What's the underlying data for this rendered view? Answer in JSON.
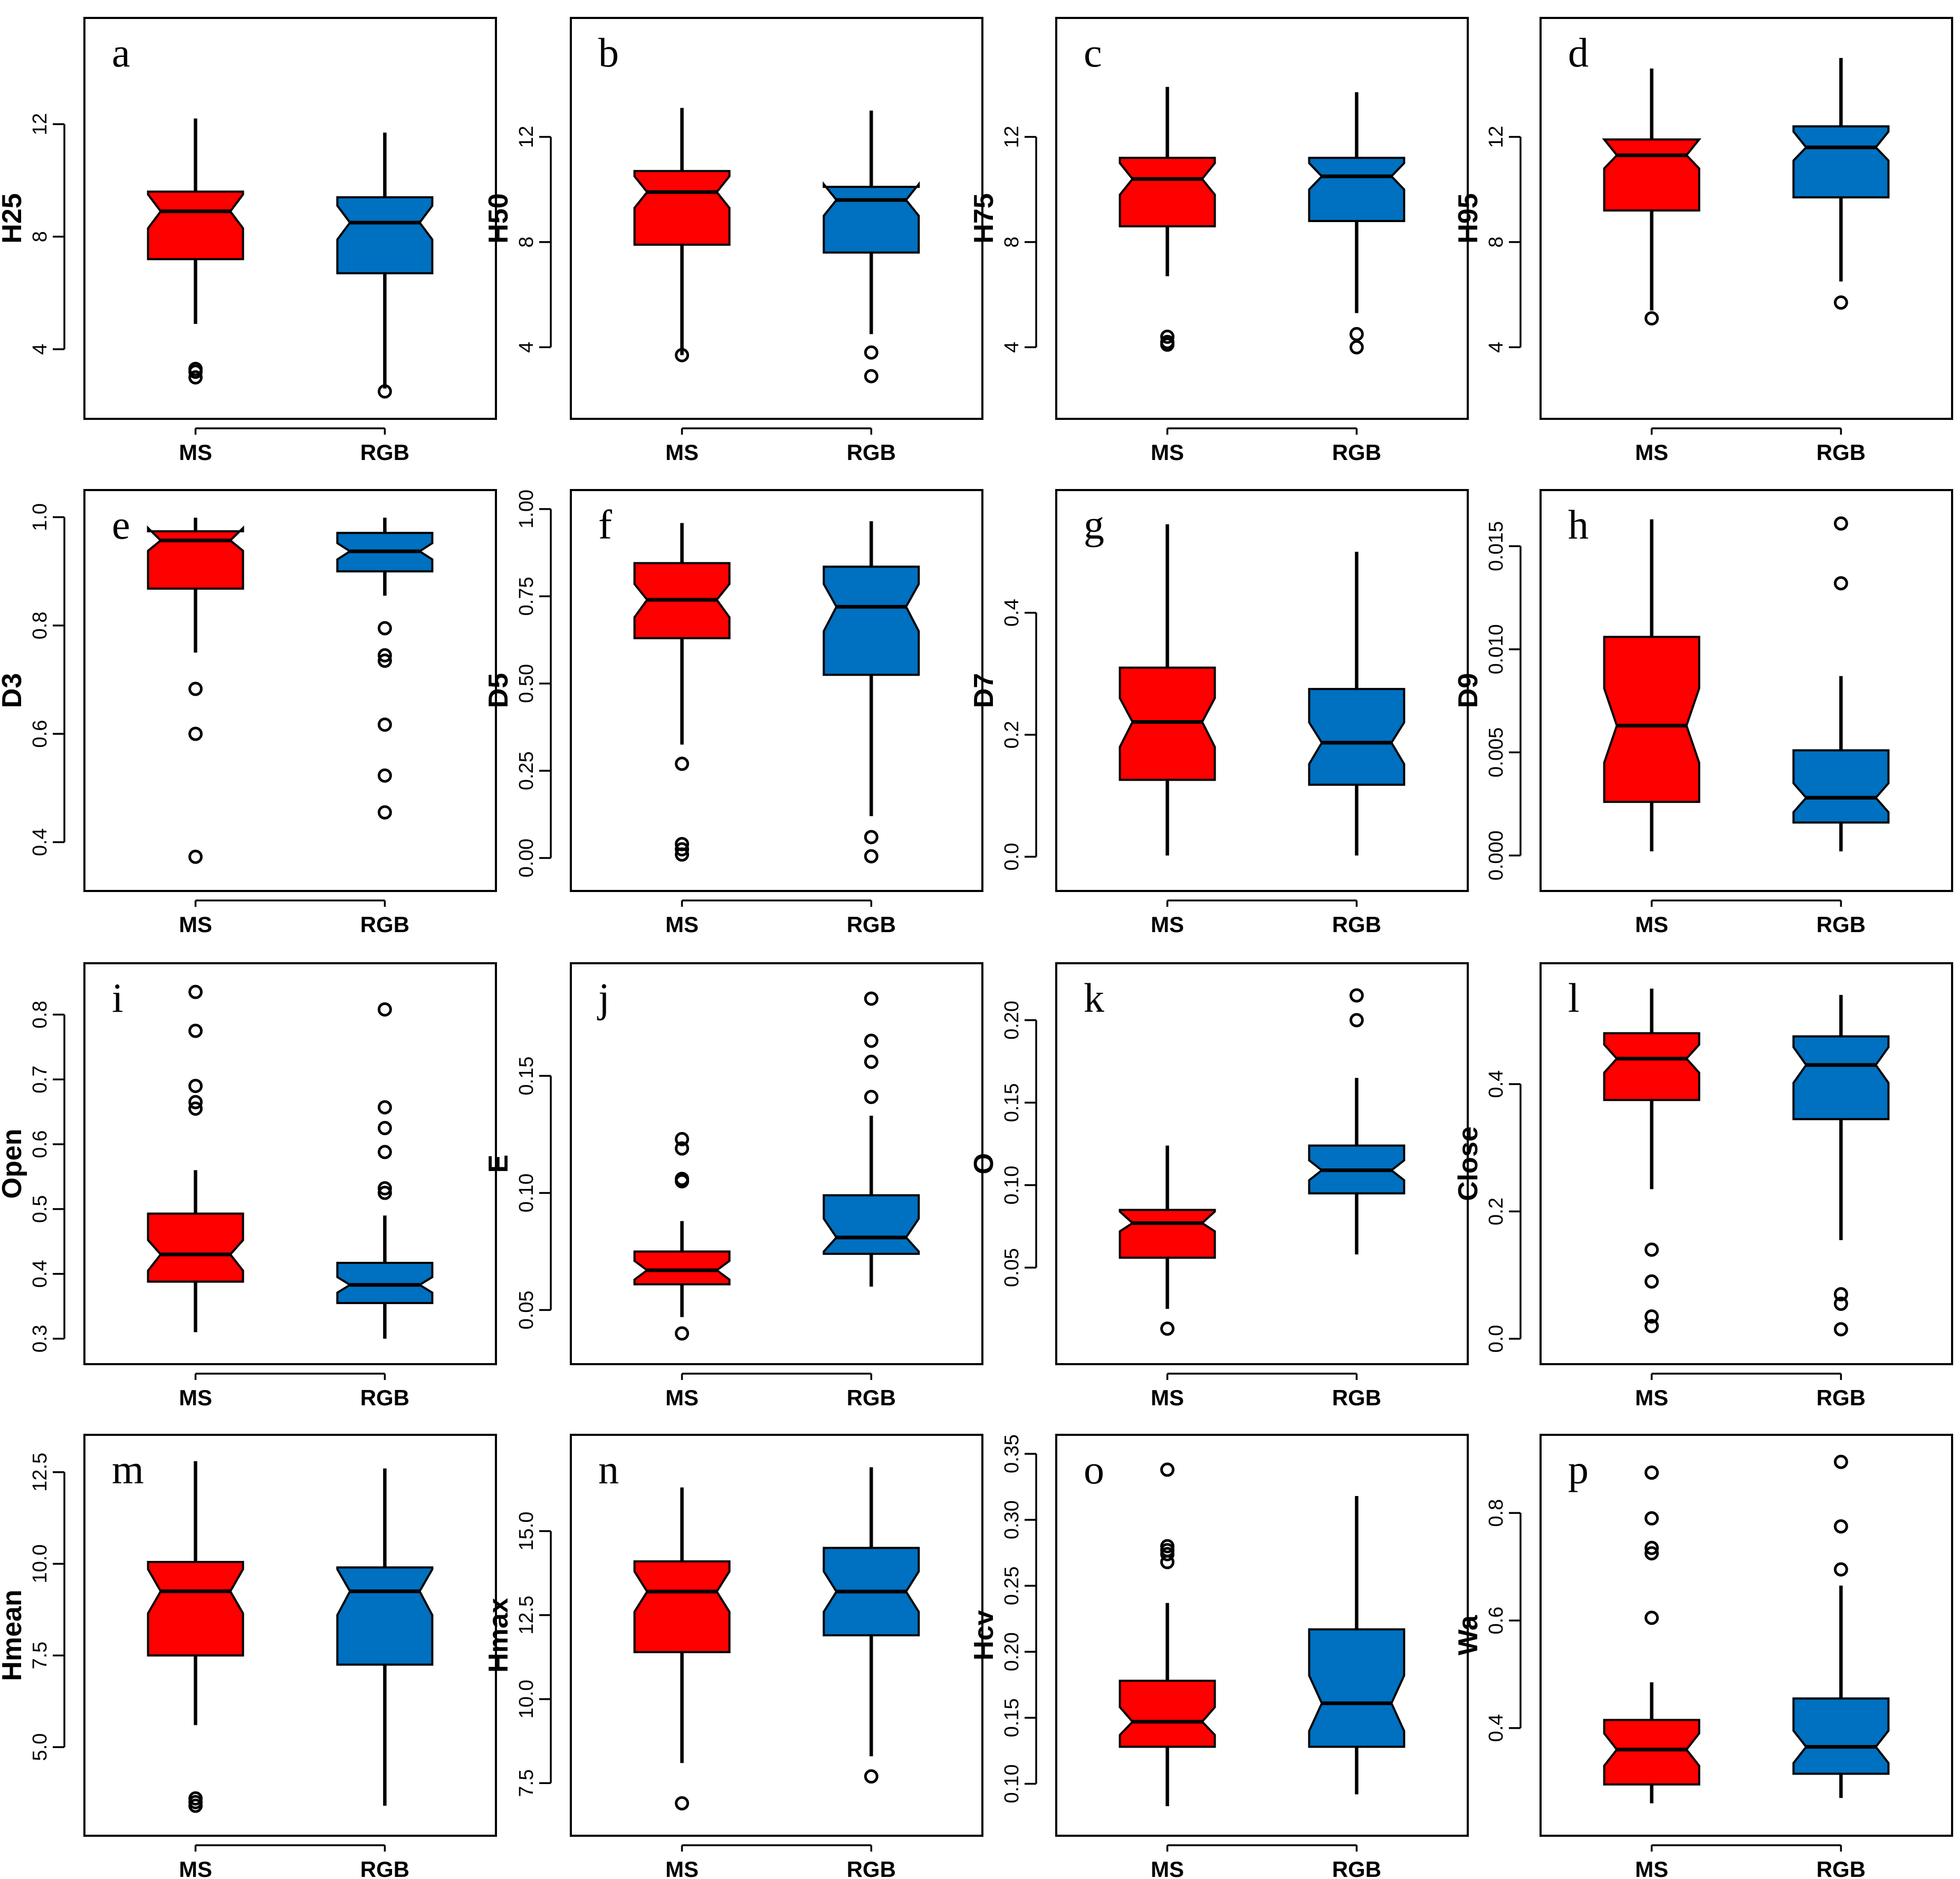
{
  "chart_data": [
    {
      "type": "box",
      "letter": "a",
      "ylabel": "H25",
      "categories": [
        "MS",
        "RGB"
      ],
      "ylim": [
        2.2,
        15.1
      ],
      "yticks": [
        {
          "v": 4,
          "t": "4"
        },
        {
          "v": 8,
          "t": "8"
        },
        {
          "v": 12,
          "t": "12"
        }
      ],
      "boxes": [
        {
          "q1": 7.2,
          "median": 8.9,
          "q3": 9.6,
          "notch": [
            8.3,
            9.5
          ],
          "wlo": 4.9,
          "whi": 12.2,
          "outliers": [
            3.0,
            3.2,
            3.3
          ]
        },
        {
          "q1": 6.7,
          "median": 8.5,
          "q3": 9.4,
          "notch": [
            7.9,
            9.1
          ],
          "wlo": 2.6,
          "whi": 11.7,
          "outliers": [
            2.5
          ]
        }
      ]
    },
    {
      "type": "box",
      "letter": "b",
      "ylabel": "H50",
      "categories": [
        "MS",
        "RGB"
      ],
      "ylim": [
        2.0,
        15.8
      ],
      "yticks": [
        {
          "v": 4,
          "t": "4"
        },
        {
          "v": 8,
          "t": "8"
        },
        {
          "v": 12,
          "t": "12"
        }
      ],
      "boxes": [
        {
          "q1": 7.9,
          "median": 9.9,
          "q3": 10.7,
          "notch": [
            9.3,
            10.5
          ],
          "wlo": 3.7,
          "whi": 13.1,
          "outliers": [
            3.7
          ]
        },
        {
          "q1": 7.6,
          "median": 9.6,
          "q3": 10.1,
          "notch": [
            9.0,
            10.2
          ],
          "wlo": 4.5,
          "whi": 13.0,
          "outliers": [
            3.8,
            2.9
          ]
        }
      ]
    },
    {
      "type": "box",
      "letter": "c",
      "ylabel": "H75",
      "categories": [
        "MS",
        "RGB"
      ],
      "ylim": [
        2.0,
        15.8
      ],
      "yticks": [
        {
          "v": 4,
          "t": "4"
        },
        {
          "v": 8,
          "t": "8"
        },
        {
          "v": 12,
          "t": "12"
        }
      ],
      "boxes": [
        {
          "q1": 8.6,
          "median": 10.4,
          "q3": 11.2,
          "notch": [
            9.8,
            11.0
          ],
          "wlo": 6.7,
          "whi": 13.9,
          "outliers": [
            4.1,
            4.2,
            4.4
          ]
        },
        {
          "q1": 8.8,
          "median": 10.5,
          "q3": 11.2,
          "notch": [
            10.0,
            11.0
          ],
          "wlo": 5.3,
          "whi": 13.7,
          "outliers": [
            4.0,
            4.5
          ]
        }
      ]
    },
    {
      "type": "box",
      "letter": "d",
      "ylabel": "H95",
      "categories": [
        "MS",
        "RGB"
      ],
      "ylim": [
        2.0,
        15.8
      ],
      "yticks": [
        {
          "v": 4,
          "t": "4"
        },
        {
          "v": 8,
          "t": "8"
        },
        {
          "v": 12,
          "t": "12"
        }
      ],
      "boxes": [
        {
          "q1": 9.2,
          "median": 11.3,
          "q3": 11.9,
          "notch": [
            10.8,
            11.9
          ],
          "wlo": 5.4,
          "whi": 14.6,
          "outliers": [
            5.1
          ]
        },
        {
          "q1": 9.7,
          "median": 11.6,
          "q3": 12.4,
          "notch": [
            11.1,
            12.2
          ],
          "wlo": 6.5,
          "whi": 15.0,
          "outliers": [
            5.7
          ]
        }
      ]
    },
    {
      "type": "box",
      "letter": "e",
      "ylabel": "D3",
      "categories": [
        "MS",
        "RGB"
      ],
      "ylim": [
        0.345,
        1.015
      ],
      "yticks": [
        {
          "v": 0.4,
          "t": "0.4"
        },
        {
          "v": 0.6,
          "t": "0.6"
        },
        {
          "v": 0.8,
          "t": "0.8"
        },
        {
          "v": 1.0,
          "t": "1.0"
        }
      ],
      "boxes": [
        {
          "q1": 0.868,
          "median": 0.957,
          "q3": 0.974,
          "notch": [
            0.938,
            0.98
          ],
          "wlo": 0.75,
          "whi": 0.999,
          "outliers": [
            0.683,
            0.6,
            0.373
          ]
        },
        {
          "q1": 0.9,
          "median": 0.937,
          "q3": 0.971,
          "notch": [
            0.922,
            0.952
          ],
          "wlo": 0.855,
          "whi": 0.999,
          "outliers": [
            0.795,
            0.745,
            0.735,
            0.617,
            0.523,
            0.455
          ]
        }
      ]
    },
    {
      "type": "box",
      "letter": "f",
      "ylabel": "D5",
      "categories": [
        "MS",
        "RGB"
      ],
      "ylim": [
        -0.04,
        1.0
      ],
      "yticks": [
        {
          "v": 0.0,
          "t": "0.00"
        },
        {
          "v": 0.25,
          "t": "0.25"
        },
        {
          "v": 0.5,
          "t": "0.50"
        },
        {
          "v": 0.75,
          "t": "0.75"
        },
        {
          "v": 1.0,
          "t": "1.00"
        }
      ],
      "boxes": [
        {
          "q1": 0.63,
          "median": 0.74,
          "q3": 0.845,
          "notch": [
            0.69,
            0.785
          ],
          "wlo": 0.325,
          "whi": 0.96,
          "outliers": [
            0.27,
            0.04,
            0.025,
            0.01
          ]
        },
        {
          "q1": 0.525,
          "median": 0.72,
          "q3": 0.835,
          "notch": [
            0.65,
            0.785
          ],
          "wlo": 0.12,
          "whi": 0.965,
          "outliers": [
            0.06,
            0.005
          ]
        }
      ]
    },
    {
      "type": "box",
      "letter": "g",
      "ylabel": "D7",
      "categories": [
        "MS",
        "RGB"
      ],
      "ylim": [
        -0.025,
        0.57
      ],
      "yticks": [
        {
          "v": 0.0,
          "t": "0.0"
        },
        {
          "v": 0.2,
          "t": "0.2"
        },
        {
          "v": 0.4,
          "t": "0.4"
        }
      ],
      "boxes": [
        {
          "q1": 0.126,
          "median": 0.221,
          "q3": 0.31,
          "notch": [
            0.18,
            0.26
          ],
          "wlo": 0.002,
          "whi": 0.545,
          "outliers": []
        },
        {
          "q1": 0.118,
          "median": 0.187,
          "q3": 0.275,
          "notch": [
            0.152,
            0.22
          ],
          "wlo": 0.002,
          "whi": 0.5,
          "outliers": []
        }
      ]
    },
    {
      "type": "box",
      "letter": "h",
      "ylabel": "D9",
      "categories": [
        "MS",
        "RGB"
      ],
      "ylim": [
        -0.0008,
        0.0168
      ],
      "yticks": [
        {
          "v": 0.0,
          "t": "0.000"
        },
        {
          "v": 0.005,
          "t": "0.005"
        },
        {
          "v": 0.01,
          "t": "0.010"
        },
        {
          "v": 0.015,
          "t": "0.015"
        }
      ],
      "boxes": [
        {
          "q1": 0.0026,
          "median": 0.0063,
          "q3": 0.0106,
          "notch": [
            0.0045,
            0.0081
          ],
          "wlo": 0.0002,
          "whi": 0.0163,
          "outliers": []
        },
        {
          "q1": 0.0016,
          "median": 0.0028,
          "q3": 0.0051,
          "notch": [
            0.0021,
            0.0035
          ],
          "wlo": 0.0002,
          "whi": 0.0087,
          "outliers": [
            0.0161,
            0.0132
          ]
        }
      ]
    },
    {
      "type": "box",
      "letter": "i",
      "ylabel": "Open",
      "categories": [
        "MS",
        "RGB"
      ],
      "ylim": [
        0.29,
        0.85
      ],
      "yticks": [
        {
          "v": 0.3,
          "t": "0.3"
        },
        {
          "v": 0.4,
          "t": "0.4"
        },
        {
          "v": 0.5,
          "t": "0.5"
        },
        {
          "v": 0.6,
          "t": "0.6"
        },
        {
          "v": 0.7,
          "t": "0.7"
        },
        {
          "v": 0.8,
          "t": "0.8"
        }
      ],
      "boxes": [
        {
          "q1": 0.388,
          "median": 0.43,
          "q3": 0.493,
          "notch": [
            0.405,
            0.452
          ],
          "wlo": 0.31,
          "whi": 0.56,
          "outliers": [
            0.835,
            0.775,
            0.69,
            0.665,
            0.655
          ]
        },
        {
          "q1": 0.355,
          "median": 0.383,
          "q3": 0.417,
          "notch": [
            0.371,
            0.395
          ],
          "wlo": 0.3,
          "whi": 0.49,
          "outliers": [
            0.808,
            0.657,
            0.625,
            0.588,
            0.532,
            0.525
          ]
        }
      ]
    },
    {
      "type": "box",
      "letter": "j",
      "ylabel": "E",
      "categories": [
        "MS",
        "RGB"
      ],
      "ylim": [
        0.035,
        0.19
      ],
      "yticks": [
        {
          "v": 0.05,
          "t": "0.05"
        },
        {
          "v": 0.1,
          "t": "0.10"
        },
        {
          "v": 0.15,
          "t": "0.15"
        }
      ],
      "boxes": [
        {
          "q1": 0.061,
          "median": 0.067,
          "q3": 0.075,
          "notch": [
            0.063,
            0.071
          ],
          "wlo": 0.047,
          "whi": 0.088,
          "outliers": [
            0.123,
            0.119,
            0.106,
            0.105,
            0.04
          ]
        },
        {
          "q1": 0.074,
          "median": 0.081,
          "q3": 0.099,
          "notch": [
            0.075,
            0.089
          ],
          "wlo": 0.06,
          "whi": 0.133,
          "outliers": [
            0.183,
            0.165,
            0.156,
            0.141
          ]
        }
      ]
    },
    {
      "type": "box",
      "letter": "k",
      "ylabel": "O",
      "categories": [
        "MS",
        "RGB"
      ],
      "ylim": [
        0.003,
        0.223
      ],
      "yticks": [
        {
          "v": 0.05,
          "t": "0.05"
        },
        {
          "v": 0.1,
          "t": "0.10"
        },
        {
          "v": 0.15,
          "t": "0.15"
        },
        {
          "v": 0.2,
          "t": "0.20"
        }
      ],
      "boxes": [
        {
          "q1": 0.056,
          "median": 0.077,
          "q3": 0.085,
          "notch": [
            0.072,
            0.084
          ],
          "wlo": 0.025,
          "whi": 0.124,
          "outliers": [
            0.013
          ]
        },
        {
          "q1": 0.095,
          "median": 0.109,
          "q3": 0.124,
          "notch": [
            0.103,
            0.115
          ],
          "wlo": 0.058,
          "whi": 0.165,
          "outliers": [
            0.215,
            0.2
          ]
        }
      ]
    },
    {
      "type": "box",
      "letter": "l",
      "ylabel": "Close",
      "categories": [
        "MS",
        "RGB"
      ],
      "ylim": [
        -0.01,
        0.56
      ],
      "yticks": [
        {
          "v": 0.0,
          "t": "0.0"
        },
        {
          "v": 0.2,
          "t": "0.2"
        },
        {
          "v": 0.4,
          "t": "0.4"
        }
      ],
      "boxes": [
        {
          "q1": 0.375,
          "median": 0.44,
          "q3": 0.48,
          "notch": [
            0.418,
            0.462
          ],
          "wlo": 0.235,
          "whi": 0.55,
          "outliers": [
            0.14,
            0.09,
            0.035,
            0.02
          ]
        },
        {
          "q1": 0.345,
          "median": 0.43,
          "q3": 0.475,
          "notch": [
            0.402,
            0.458
          ],
          "wlo": 0.155,
          "whi": 0.54,
          "outliers": [
            0.07,
            0.055,
            0.015
          ]
        }
      ]
    },
    {
      "type": "box",
      "letter": "m",
      "ylabel": "Hmean",
      "categories": [
        "MS",
        "RGB"
      ],
      "ylim": [
        3.1,
        13.0
      ],
      "yticks": [
        {
          "v": 5.0,
          "t": "5.0"
        },
        {
          "v": 7.5,
          "t": "7.5"
        },
        {
          "v": 10.0,
          "t": "10.0"
        },
        {
          "v": 12.5,
          "t": "12.5"
        }
      ],
      "boxes": [
        {
          "q1": 7.5,
          "median": 9.25,
          "q3": 10.05,
          "notch": [
            8.65,
            9.85
          ],
          "wlo": 5.6,
          "whi": 12.8,
          "outliers": [
            3.6,
            3.5,
            3.4
          ]
        },
        {
          "q1": 7.25,
          "median": 9.25,
          "q3": 9.9,
          "notch": [
            8.6,
            9.85
          ],
          "wlo": 3.4,
          "whi": 12.6,
          "outliers": []
        }
      ]
    },
    {
      "type": "box",
      "letter": "n",
      "ylabel": "Hmax",
      "categories": [
        "MS",
        "RGB"
      ],
      "ylim": [
        6.5,
        17.3
      ],
      "yticks": [
        {
          "v": 7.5,
          "t": "7.5"
        },
        {
          "v": 10.0,
          "t": "10.0"
        },
        {
          "v": 12.5,
          "t": "12.5"
        },
        {
          "v": 15.0,
          "t": "15.0"
        }
      ],
      "boxes": [
        {
          "q1": 11.4,
          "median": 13.2,
          "q3": 14.1,
          "notch": [
            12.6,
            13.8
          ],
          "wlo": 8.1,
          "whi": 16.3,
          "outliers": [
            6.9
          ]
        },
        {
          "q1": 11.9,
          "median": 13.2,
          "q3": 14.5,
          "notch": [
            12.6,
            13.8
          ],
          "wlo": 8.3,
          "whi": 16.9,
          "outliers": [
            7.7
          ]
        }
      ]
    },
    {
      "type": "box",
      "letter": "o",
      "ylabel": "Hcv",
      "categories": [
        "MS",
        "RGB"
      ],
      "ylim": [
        0.075,
        0.35
      ],
      "yticks": [
        {
          "v": 0.1,
          "t": "0.10"
        },
        {
          "v": 0.15,
          "t": "0.15"
        },
        {
          "v": 0.2,
          "t": "0.20"
        },
        {
          "v": 0.25,
          "t": "0.25"
        },
        {
          "v": 0.3,
          "t": "0.30"
        },
        {
          "v": 0.35,
          "t": "0.35"
        }
      ],
      "boxes": [
        {
          "q1": 0.128,
          "median": 0.147,
          "q3": 0.178,
          "notch": [
            0.137,
            0.158
          ],
          "wlo": 0.083,
          "whi": 0.237,
          "outliers": [
            0.338,
            0.28,
            0.277,
            0.274,
            0.268
          ]
        },
        {
          "q1": 0.128,
          "median": 0.161,
          "q3": 0.217,
          "notch": [
            0.14,
            0.182
          ],
          "wlo": 0.092,
          "whi": 0.318,
          "outliers": []
        }
      ]
    },
    {
      "type": "box",
      "letter": "p",
      "ylabel": "Wa",
      "categories": [
        "MS",
        "RGB"
      ],
      "ylim": [
        0.235,
        0.91
      ],
      "yticks": [
        {
          "v": 0.4,
          "t": "0.4"
        },
        {
          "v": 0.6,
          "t": "0.6"
        },
        {
          "v": 0.8,
          "t": "0.8"
        }
      ],
      "boxes": [
        {
          "q1": 0.295,
          "median": 0.36,
          "q3": 0.415,
          "notch": [
            0.33,
            0.39
          ],
          "wlo": 0.26,
          "whi": 0.485,
          "outliers": [
            0.875,
            0.79,
            0.735,
            0.725,
            0.605
          ]
        },
        {
          "q1": 0.315,
          "median": 0.365,
          "q3": 0.455,
          "notch": [
            0.335,
            0.395
          ],
          "wlo": 0.27,
          "whi": 0.665,
          "outliers": [
            0.895,
            0.775,
            0.695
          ]
        }
      ]
    }
  ],
  "colors": {
    "MS": "#ff0000",
    "RGB": "#0070c0"
  }
}
